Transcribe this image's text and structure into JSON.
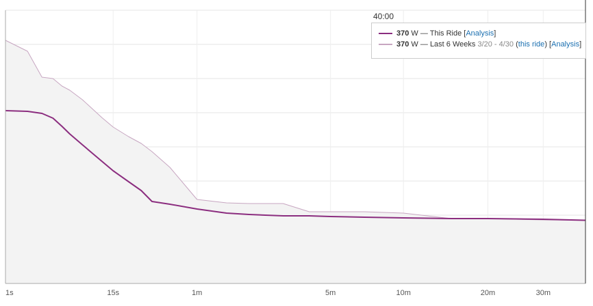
{
  "chart_data": {
    "type": "line",
    "x": [
      1,
      2,
      3,
      4,
      5,
      6,
      8,
      10,
      12,
      15,
      20,
      25,
      30,
      40,
      60,
      90,
      120,
      180,
      240,
      300,
      420,
      600,
      900,
      1200,
      1800,
      2400
    ],
    "series": [
      {
        "name": "This Ride",
        "color": "#8b2d7f",
        "area": false,
        "values": [
          1012,
          1008,
          996,
          968,
          920,
          876,
          812,
          760,
          716,
          660,
          596,
          544,
          480,
          464,
          436,
          412,
          404,
          396,
          396,
          392,
          388,
          384,
          380,
          380,
          376,
          370
        ],
        "legend_value": 370,
        "legend_extras": [
          {
            "text": "[",
            "link": false
          },
          {
            "text": "Analysis",
            "link": true
          },
          {
            "text": "]",
            "link": false
          }
        ]
      },
      {
        "name": "Last 6 Weeks",
        "color": "#c7a6c1",
        "area": true,
        "area_color": "#f3f3f3",
        "values": [
          1424,
          1360,
          1208,
          1200,
          1156,
          1132,
          1076,
          1020,
          972,
          916,
          860,
          820,
          772,
          680,
          492,
          472,
          468,
          468,
          420,
          420,
          420,
          412,
          380,
          380,
          372,
          370
        ],
        "legend_value": 370,
        "legend_extras": [
          {
            "text": "3/20 - 4/30",
            "link": false,
            "muted": true
          },
          {
            "text": "(",
            "link": false
          },
          {
            "text": "this ride",
            "link": true
          },
          {
            "text": ")",
            "link": false
          },
          {
            "text": "[",
            "link": false
          },
          {
            "text": "Analysis",
            "link": true
          },
          {
            "text": "]",
            "link": false
          }
        ]
      }
    ],
    "unit": "W",
    "separator": "—",
    "hover_label": "40:00",
    "hover_x": 2400,
    "xlim": [
      1,
      2400
    ],
    "xticks": [
      {
        "value": 1,
        "label": "1s"
      },
      {
        "value": 15,
        "label": "15s"
      },
      {
        "value": 60,
        "label": "1m"
      },
      {
        "value": 300,
        "label": "5m"
      },
      {
        "value": 600,
        "label": "10m"
      },
      {
        "value": 1200,
        "label": "20m"
      },
      {
        "value": 1800,
        "label": "30m"
      }
    ],
    "ylim": [
      0,
      1600
    ],
    "ygrid": [
      0,
      200,
      400,
      600,
      800,
      1000,
      1200,
      1400,
      1600
    ],
    "grid": true
  }
}
